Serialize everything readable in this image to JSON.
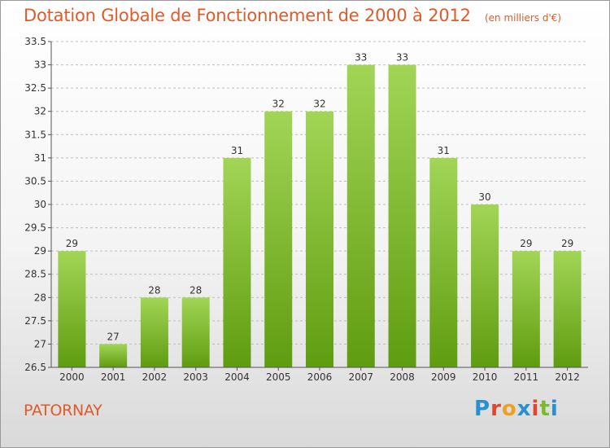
{
  "title": "Dotation Globale de Fonctionnement de 2000 à 2012",
  "unit": "(en milliers d'€)",
  "commune": "PATORNAY",
  "brand": {
    "letters": [
      "P",
      "r",
      "o",
      "x",
      "i",
      "t",
      "i"
    ],
    "colors": [
      "#2a8fd0",
      "#e0462b",
      "#f0a020",
      "#2a8fd0",
      "#e0462b",
      "#7ab82e",
      "#2a8fd0"
    ]
  },
  "colors": {
    "bar_top": "#a2d556",
    "bar_bottom": "#5f9c10",
    "title": "#e05a2a"
  },
  "chart_data": {
    "type": "bar",
    "categories": [
      "2000",
      "2001",
      "2002",
      "2003",
      "2004",
      "2005",
      "2006",
      "2007",
      "2008",
      "2009",
      "2010",
      "2011",
      "2012"
    ],
    "values": [
      29,
      27,
      28,
      28,
      31,
      32,
      32,
      33,
      33,
      31,
      30,
      29,
      29
    ],
    "data_labels": [
      "29",
      "27",
      "28",
      "28",
      "31",
      "32",
      "32",
      "33",
      "33",
      "31",
      "30",
      "29",
      "29"
    ],
    "yticks": [
      26.5,
      27,
      27.5,
      28,
      28.5,
      29,
      29.5,
      30,
      30.5,
      31,
      31.5,
      32,
      32.5,
      33,
      33.5
    ],
    "ylim": [
      26.5,
      33.5
    ],
    "grid": "horizontal-dashed"
  }
}
